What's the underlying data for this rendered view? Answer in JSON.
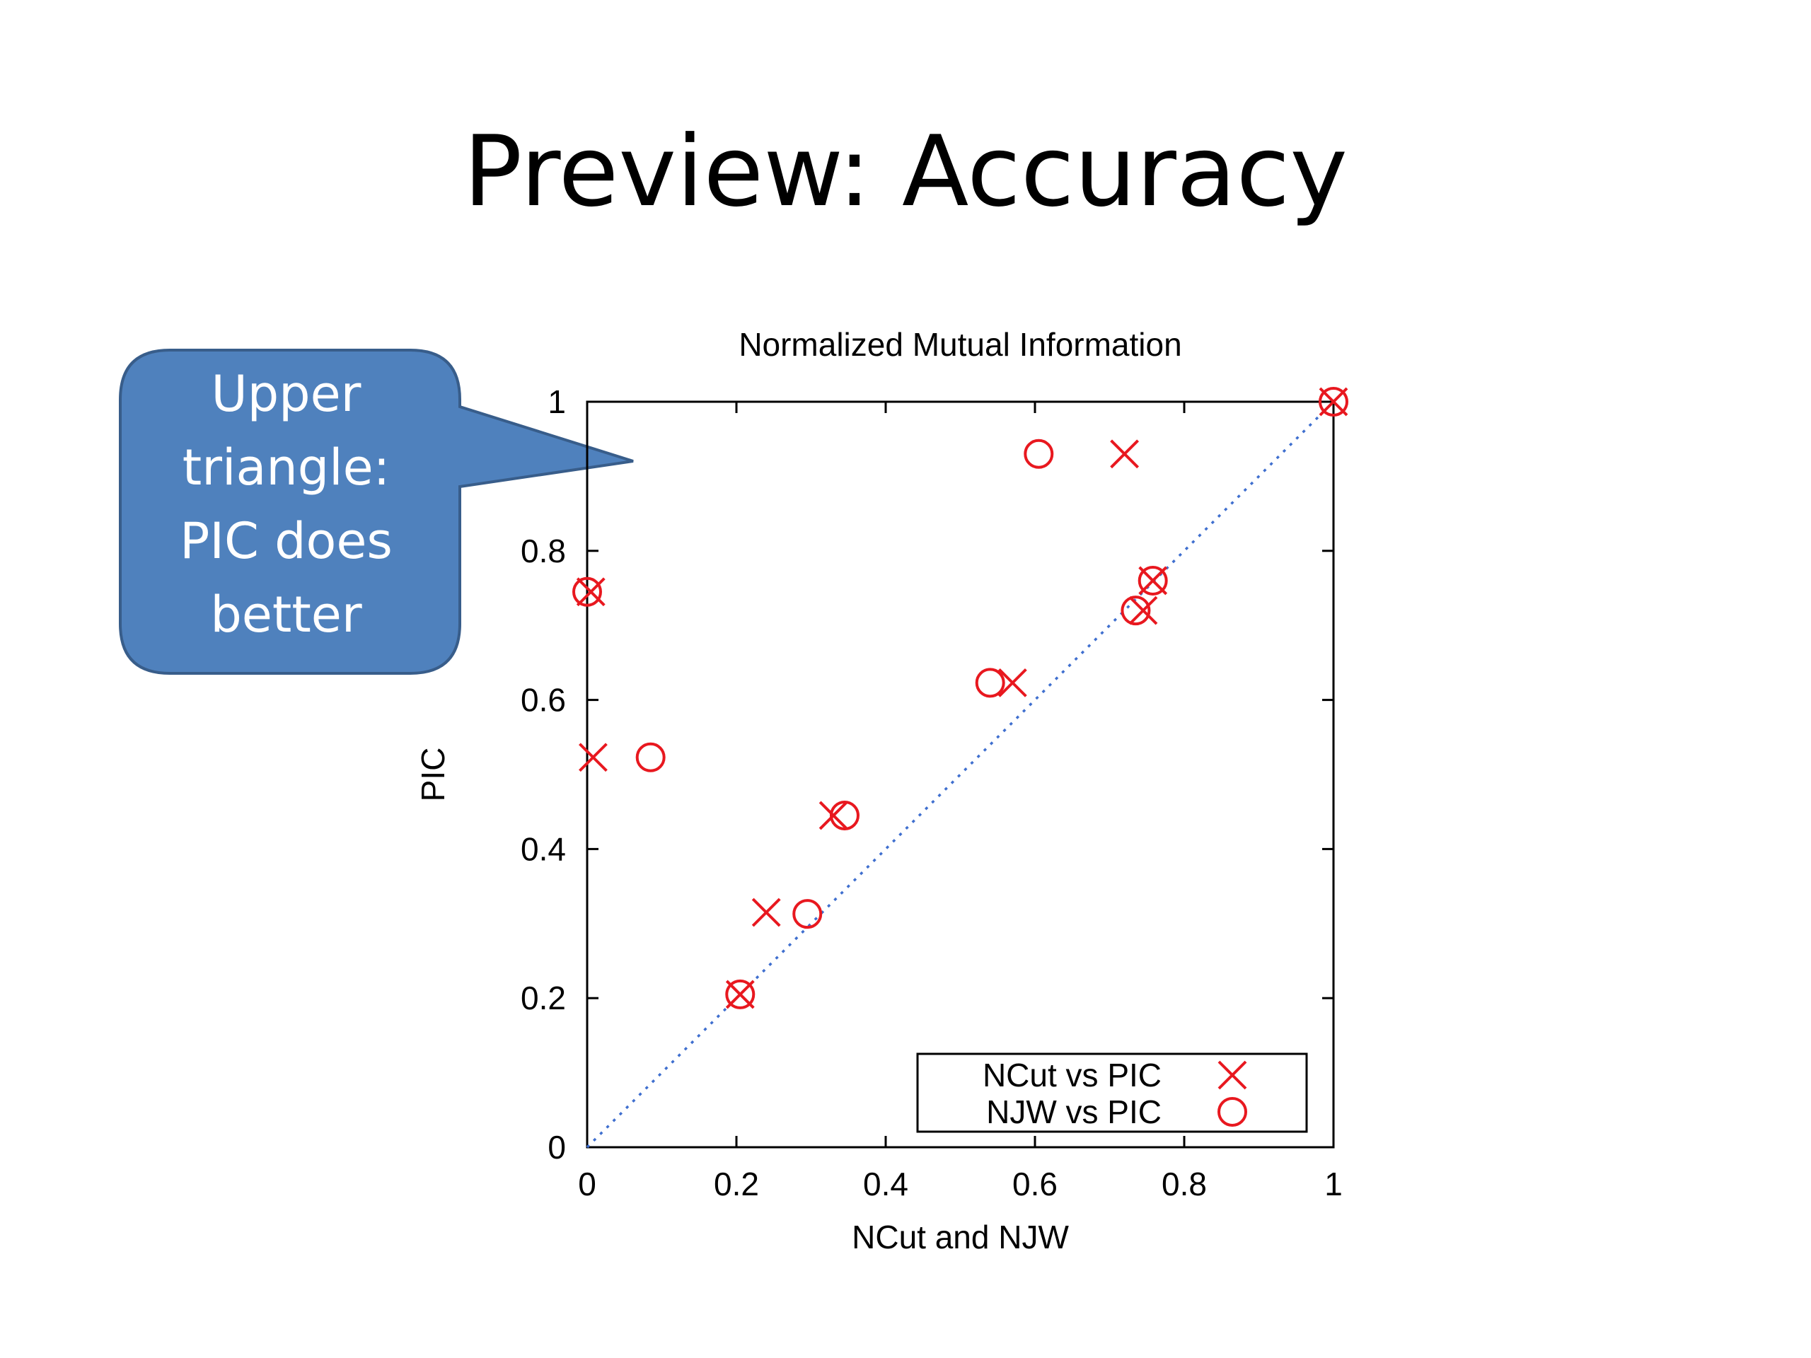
{
  "slide": {
    "title": "Preview: Accuracy",
    "callout_lines": [
      "Upper",
      "triangle:",
      "PIC does",
      "better"
    ],
    "callout_fill": "#4f81bd",
    "callout_stroke": "#385d8a"
  },
  "chart_data": {
    "type": "scatter",
    "title": "Normalized Mutual Information",
    "xlabel": "NCut and NJW",
    "ylabel": "PIC",
    "xlim": [
      0,
      1
    ],
    "ylim": [
      0,
      1
    ],
    "xticks": [
      "0",
      "0.2",
      "0.4",
      "0.6",
      "0.8",
      "1"
    ],
    "yticks": [
      "0",
      "0.2",
      "0.4",
      "0.6",
      "0.8",
      "1"
    ],
    "grid": false,
    "legend_position": "bottom-right",
    "diagonal_color": "#3f6fcf",
    "series": [
      {
        "name": "NCut vs PIC",
        "marker": "x",
        "color": "#e8181f",
        "points": [
          [
            0.005,
            0.745
          ],
          [
            0.008,
            0.523
          ],
          [
            0.205,
            0.205
          ],
          [
            0.24,
            0.315
          ],
          [
            0.33,
            0.445
          ],
          [
            0.57,
            0.623
          ],
          [
            0.72,
            0.93
          ],
          [
            0.745,
            0.72
          ],
          [
            0.758,
            0.76
          ],
          [
            1.0,
            1.0
          ]
        ]
      },
      {
        "name": "NJW vs PIC",
        "marker": "o",
        "color": "#e8181f",
        "points": [
          [
            0.0,
            0.745
          ],
          [
            0.085,
            0.523
          ],
          [
            0.205,
            0.205
          ],
          [
            0.295,
            0.313
          ],
          [
            0.345,
            0.445
          ],
          [
            0.54,
            0.623
          ],
          [
            0.605,
            0.93
          ],
          [
            0.735,
            0.72
          ],
          [
            0.758,
            0.76
          ],
          [
            1.0,
            1.0
          ]
        ]
      }
    ]
  }
}
